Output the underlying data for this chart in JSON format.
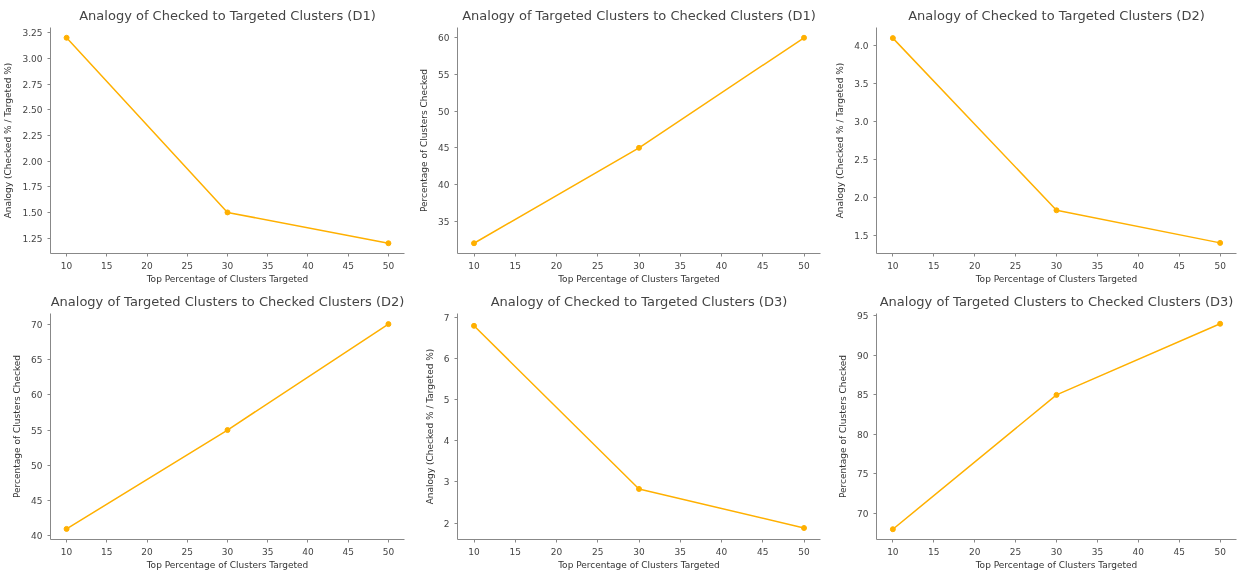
{
  "chart_data": [
    {
      "type": "line",
      "title": "Analogy of Checked to Targeted Clusters (D1)",
      "xlabel": "Top Percentage of Clusters Targeted",
      "ylabel": "Analogy (Checked % / Targeted %)",
      "x": [
        10,
        30,
        50
      ],
      "values": [
        3.2,
        1.5,
        1.2
      ],
      "color": "#ffb000",
      "marker": "circle",
      "xlim": [
        8,
        52
      ],
      "xticks": [
        10,
        15,
        20,
        25,
        30,
        35,
        40,
        45,
        50
      ],
      "ylim": [
        1.1,
        3.3
      ],
      "yticks": [
        1.25,
        {
          "value": 1.5,
          "label": "1.50"
        },
        1.75,
        {
          "value": 2,
          "label": "2.00"
        },
        2.25,
        {
          "value": 2.5,
          "label": "2.50"
        },
        2.75,
        {
          "value": 3,
          "label": "3.00"
        },
        3.25
      ]
    },
    {
      "type": "line",
      "title": "Analogy of Targeted Clusters to Checked Clusters (D1)",
      "xlabel": "Top Percentage of Clusters Targeted",
      "ylabel": "Percentage of Clusters Checked",
      "x": [
        10,
        30,
        50
      ],
      "values": [
        32,
        45,
        60
      ],
      "color": "#ffb000",
      "marker": "circle",
      "xlim": [
        8,
        52
      ],
      "xticks": [
        10,
        15,
        20,
        25,
        30,
        35,
        40,
        45,
        50
      ],
      "ylim": [
        30.6,
        61.4
      ],
      "yticks": [
        35,
        40,
        45,
        50,
        55,
        60
      ]
    },
    {
      "type": "line",
      "title": "Analogy of Checked to Targeted Clusters (D2)",
      "xlabel": "Top Percentage of Clusters Targeted",
      "ylabel": "Analogy (Checked % / Targeted %)",
      "x": [
        10,
        30,
        50
      ],
      "values": [
        4.1,
        1.83,
        1.4
      ],
      "color": "#ffb000",
      "marker": "circle",
      "xlim": [
        8,
        52
      ],
      "xticks": [
        10,
        15,
        20,
        25,
        30,
        35,
        40,
        45,
        50
      ],
      "ylim": [
        1.26,
        4.24
      ],
      "yticks": [
        1.5,
        {
          "value": 2,
          "label": "2.0"
        },
        2.5,
        {
          "value": 3,
          "label": "3.0"
        },
        3.5,
        {
          "value": 4,
          "label": "4.0"
        }
      ]
    },
    {
      "type": "line",
      "title": "Analogy of Targeted Clusters to Checked Clusters (D2)",
      "xlabel": "Top Percentage of Clusters Targeted",
      "ylabel": "Percentage of Clusters Checked",
      "x": [
        10,
        30,
        50
      ],
      "values": [
        41,
        55,
        70
      ],
      "color": "#ffb000",
      "marker": "circle",
      "xlim": [
        8,
        52
      ],
      "xticks": [
        10,
        15,
        20,
        25,
        30,
        35,
        40,
        45,
        50
      ],
      "ylim": [
        39.5,
        71.5
      ],
      "yticks": [
        40,
        45,
        50,
        55,
        60,
        65,
        70
      ]
    },
    {
      "type": "line",
      "title": "Analogy of Checked to Targeted Clusters (D3)",
      "xlabel": "Top Percentage of Clusters Targeted",
      "ylabel": "Analogy (Checked % / Targeted %)",
      "x": [
        10,
        30,
        50
      ],
      "values": [
        6.8,
        2.83,
        1.88
      ],
      "color": "#ffb000",
      "marker": "circle",
      "xlim": [
        8,
        52
      ],
      "xticks": [
        10,
        15,
        20,
        25,
        30,
        35,
        40,
        45,
        50
      ],
      "ylim": [
        1.6,
        7.1
      ],
      "yticks": [
        2,
        3,
        4,
        5,
        6,
        7
      ]
    },
    {
      "type": "line",
      "title": "Analogy of Targeted Clusters to Checked Clusters (D3)",
      "xlabel": "Top Percentage of Clusters Targeted",
      "ylabel": "Percentage of Clusters Checked",
      "x": [
        10,
        30,
        50
      ],
      "values": [
        68,
        85,
        94
      ],
      "color": "#ffb000",
      "marker": "circle",
      "xlim": [
        8,
        52
      ],
      "xticks": [
        10,
        15,
        20,
        25,
        30,
        35,
        40,
        45,
        50
      ],
      "ylim": [
        66.7,
        95.3
      ],
      "yticks": [
        70,
        75,
        80,
        85,
        90,
        95
      ]
    }
  ]
}
